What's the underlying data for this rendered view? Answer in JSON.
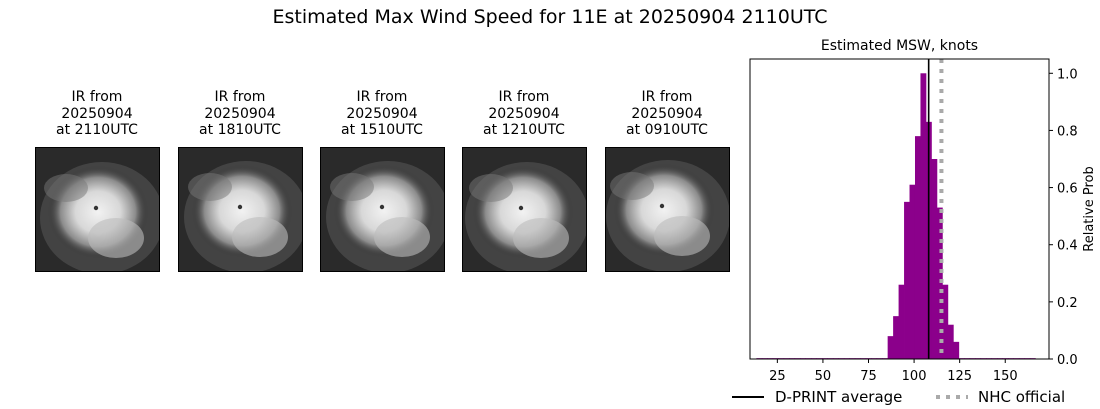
{
  "page_title": "Estimated Max Wind Speed for 11E at 20250904 2110UTC",
  "ir_panels": [
    {
      "line1": "IR from",
      "line2": "20250904",
      "line3": "at 2110UTC"
    },
    {
      "line1": "IR from",
      "line2": "20250904",
      "line3": "at 1810UTC"
    },
    {
      "line1": "IR from",
      "line2": "20250904",
      "line3": "at 1510UTC"
    },
    {
      "line1": "IR from",
      "line2": "20250904",
      "line3": "at 1210UTC"
    },
    {
      "line1": "IR from",
      "line2": "20250904",
      "line3": "at 0910UTC"
    }
  ],
  "chart_data": {
    "type": "bar",
    "title": "Estimated MSW, knots",
    "xlabel": "",
    "ylabel": "Relative Prob",
    "xlim": [
      10,
      174
    ],
    "ylim": [
      0,
      1.05
    ],
    "xticks": [
      25,
      50,
      75,
      100,
      125,
      150
    ],
    "yticks": [
      0.0,
      0.2,
      0.4,
      0.6,
      0.8,
      1.0
    ],
    "ytick_labels": [
      "0.0",
      "0.2",
      "0.4",
      "0.6",
      "0.8",
      "1.0"
    ],
    "bar_color": "#8b008b",
    "bin_width": 3,
    "bins": [
      {
        "x": 15,
        "y": 0.003
      },
      {
        "x": 18,
        "y": 0.003
      },
      {
        "x": 21,
        "y": 0.003
      },
      {
        "x": 24,
        "y": 0.003
      },
      {
        "x": 27,
        "y": 0.003
      },
      {
        "x": 30,
        "y": 0.003
      },
      {
        "x": 33,
        "y": 0.003
      },
      {
        "x": 36,
        "y": 0.003
      },
      {
        "x": 39,
        "y": 0.003
      },
      {
        "x": 42,
        "y": 0.003
      },
      {
        "x": 45,
        "y": 0.003
      },
      {
        "x": 48,
        "y": 0.003
      },
      {
        "x": 51,
        "y": 0.003
      },
      {
        "x": 54,
        "y": 0.003
      },
      {
        "x": 57,
        "y": 0.003
      },
      {
        "x": 60,
        "y": 0.003
      },
      {
        "x": 63,
        "y": 0.003
      },
      {
        "x": 66,
        "y": 0.003
      },
      {
        "x": 69,
        "y": 0.003
      },
      {
        "x": 72,
        "y": 0.003
      },
      {
        "x": 75,
        "y": 0.003
      },
      {
        "x": 78,
        "y": 0.003
      },
      {
        "x": 81,
        "y": 0.003
      },
      {
        "x": 84,
        "y": 0.003
      },
      {
        "x": 87,
        "y": 0.08
      },
      {
        "x": 90,
        "y": 0.15
      },
      {
        "x": 93,
        "y": 0.26
      },
      {
        "x": 96,
        "y": 0.55
      },
      {
        "x": 99,
        "y": 0.61
      },
      {
        "x": 102,
        "y": 0.78
      },
      {
        "x": 105,
        "y": 1.0
      },
      {
        "x": 108,
        "y": 0.83
      },
      {
        "x": 111,
        "y": 0.7
      },
      {
        "x": 114,
        "y": 0.53
      },
      {
        "x": 117,
        "y": 0.26
      },
      {
        "x": 120,
        "y": 0.12
      },
      {
        "x": 123,
        "y": 0.06
      },
      {
        "x": 126,
        "y": 0.003
      },
      {
        "x": 129,
        "y": 0.003
      },
      {
        "x": 132,
        "y": 0.003
      },
      {
        "x": 135,
        "y": 0.003
      },
      {
        "x": 138,
        "y": 0.003
      },
      {
        "x": 141,
        "y": 0.003
      },
      {
        "x": 144,
        "y": 0.003
      },
      {
        "x": 147,
        "y": 0.003
      },
      {
        "x": 150,
        "y": 0.003
      },
      {
        "x": 153,
        "y": 0.003
      },
      {
        "x": 156,
        "y": 0.003
      },
      {
        "x": 159,
        "y": 0.003
      },
      {
        "x": 162,
        "y": 0.003
      },
      {
        "x": 165,
        "y": 0.003
      }
    ],
    "lines": [
      {
        "name": "D-PRINT average",
        "x": 108,
        "color": "#000000",
        "style": "solid"
      },
      {
        "name": "NHC official",
        "x": 115,
        "color": "#aaaaaa",
        "style": "dotted"
      }
    ],
    "legend_placement": "bottom"
  }
}
